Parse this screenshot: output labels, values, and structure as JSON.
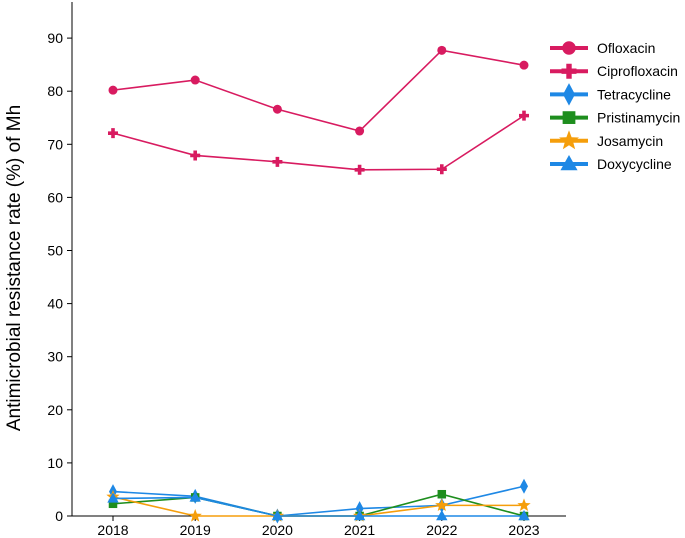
{
  "chart_data": {
    "type": "line",
    "title": "",
    "xlabel": "",
    "ylabel": "Antimicrobial resistance rate (%) of Mh",
    "x": [
      "2018",
      "2019",
      "2020",
      "2021",
      "2022",
      "2023"
    ],
    "ylim": [
      0,
      95
    ],
    "yticks": [
      0,
      10,
      20,
      30,
      40,
      50,
      60,
      70,
      80,
      90
    ],
    "grid": false,
    "legend_position": "top-right",
    "series": [
      {
        "name": "Ofloxacin",
        "marker": "circle",
        "color": "#D81B60",
        "values": [
          80.2,
          82.1,
          76.6,
          72.5,
          87.7,
          84.9
        ]
      },
      {
        "name": "Ciprofloxacin",
        "marker": "plus",
        "color": "#D81B60",
        "values": [
          72.1,
          67.9,
          66.7,
          65.2,
          65.3,
          75.4
        ]
      },
      {
        "name": "Tetracycline",
        "marker": "diamond",
        "color": "#1E88E5",
        "values": [
          4.6,
          3.7,
          0,
          1.4,
          2.0,
          5.6
        ]
      },
      {
        "name": "Pristinamycin",
        "marker": "square",
        "color": "#1E8E1E",
        "values": [
          2.3,
          3.5,
          0,
          0,
          4.1,
          0
        ]
      },
      {
        "name": "Josamycin",
        "marker": "star",
        "color": "#F59E0B",
        "values": [
          3.6,
          0,
          0,
          0,
          2.0,
          2.0
        ]
      },
      {
        "name": "Doxycycline",
        "marker": "triangle",
        "color": "#1E88E5",
        "values": [
          3.3,
          3.5,
          0,
          0,
          0,
          0
        ]
      }
    ]
  }
}
